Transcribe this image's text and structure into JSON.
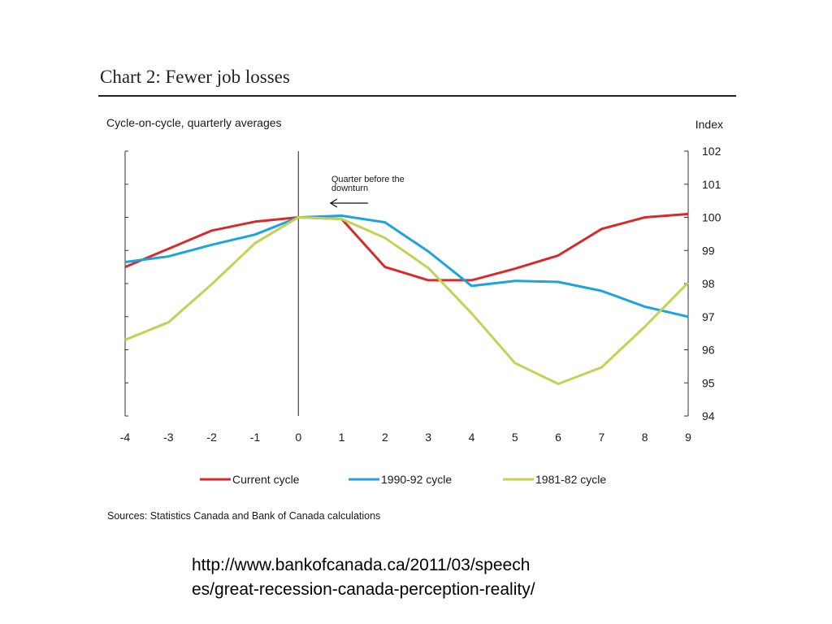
{
  "page": {
    "title": "Chart 2: Fewer job losses",
    "url_line1": "http://www.bankofcanada.ca/2011/03/speech",
    "url_line2": "es/great-recession-canada-perception-reality/"
  },
  "chart_data": {
    "type": "line",
    "title": "Chart 2: Fewer job losses",
    "subtitle": "Cycle-on-cycle, quarterly averages",
    "xlabel": "",
    "ylabel": "Index",
    "x": [
      -4,
      -3,
      -2,
      -1,
      0,
      1,
      2,
      3,
      4,
      5,
      6,
      7,
      8,
      9
    ],
    "xlim": [
      -4,
      9
    ],
    "ylim": [
      94,
      102
    ],
    "x_ticks": [
      "-4",
      "-3",
      "-2",
      "-1",
      "0",
      "1",
      "2",
      "3",
      "4",
      "5",
      "6",
      "7",
      "8",
      "9"
    ],
    "y_ticks": [
      "94",
      "95",
      "96",
      "97",
      "98",
      "99",
      "100",
      "101",
      "102"
    ],
    "series": [
      {
        "name": "Current cycle",
        "color": "#d62b2b",
        "values": [
          98.5,
          99.05,
          99.6,
          99.87,
          100.0,
          99.95,
          98.5,
          98.1,
          98.1,
          98.45,
          98.85,
          99.65,
          100.0,
          100.1
        ]
      },
      {
        "name": "1990-92 cycle",
        "color": "#1ea3dc",
        "values": [
          98.65,
          98.82,
          99.17,
          99.48,
          100.0,
          100.05,
          99.85,
          98.97,
          97.93,
          98.08,
          98.05,
          97.78,
          97.3,
          97.0
        ]
      },
      {
        "name": "1981-82 cycle",
        "color": "#c4d155",
        "values": [
          96.3,
          96.83,
          97.98,
          99.22,
          100.0,
          99.95,
          99.38,
          98.47,
          97.1,
          95.6,
          94.97,
          95.47,
          96.7,
          98.03
        ]
      }
    ],
    "reference_line": {
      "x": 0
    },
    "annotations": [
      {
        "text_lines": [
          "Quarter before the",
          "downturn"
        ],
        "x": 1.55,
        "y": 100.4,
        "arrow": "left"
      }
    ],
    "legend_position": "bottom",
    "source": "Sources: Statistics Canada and Bank of Canada calculations"
  }
}
